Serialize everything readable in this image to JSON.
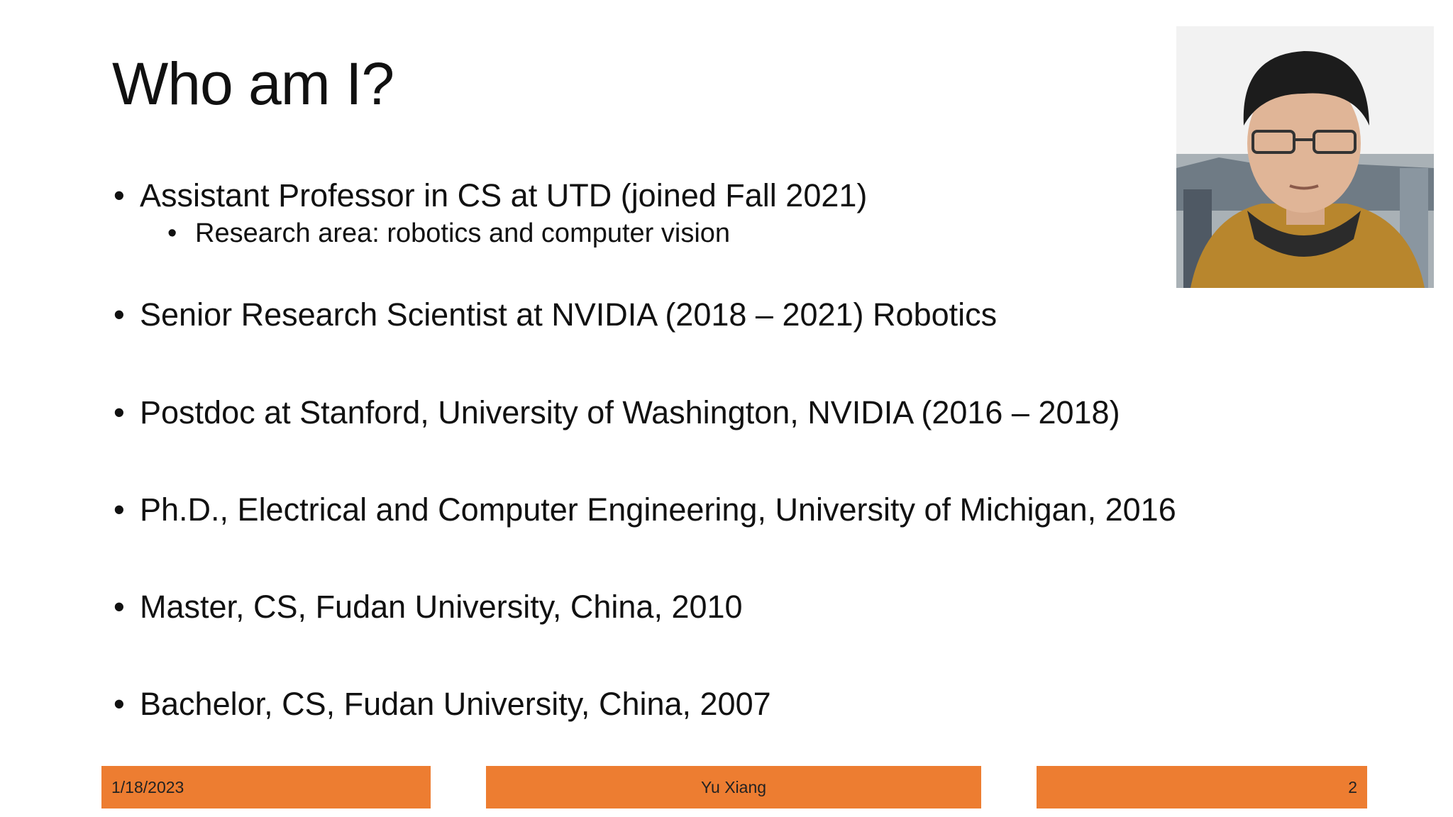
{
  "title": "Who am I?",
  "bullets": [
    {
      "text": "Assistant Professor in CS at UTD (joined Fall 2021)",
      "sub": [
        "Research area: robotics and computer vision"
      ]
    },
    {
      "text": "Senior Research Scientist at NVIDIA (2018 – 2021) Robotics"
    },
    {
      "text": "Postdoc at Stanford, University of Washington, NVIDIA (2016 – 2018)"
    },
    {
      "text": "Ph.D., Electrical and Computer Engineering, University of Michigan, 2016"
    },
    {
      "text": "Master, CS, Fudan University, China, 2010"
    },
    {
      "text": "Bachelor, CS, Fudan University, China, 2007"
    }
  ],
  "footer": {
    "date": "1/18/2023",
    "author": "Yu Xiang",
    "page": "2"
  }
}
